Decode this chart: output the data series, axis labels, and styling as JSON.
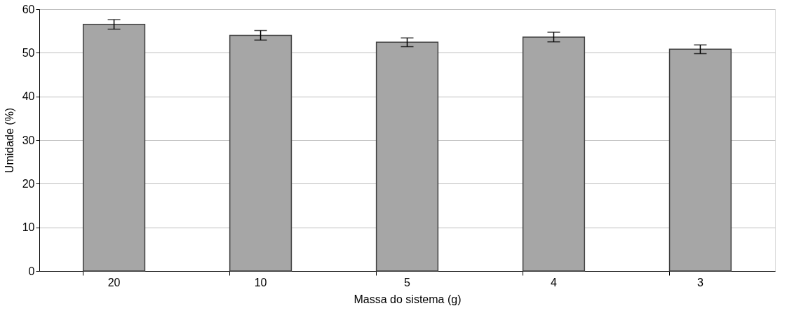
{
  "chart_data": {
    "type": "bar",
    "xlabel": "Massa do sistema (g)",
    "ylabel": "Umidade (%)",
    "categories": [
      "20",
      "10",
      "5",
      "4",
      "3"
    ],
    "values": [
      56.5,
      54,
      52.4,
      53.6,
      50.8
    ],
    "errors": [
      1.1,
      1.1,
      1.0,
      1.1,
      1.0
    ],
    "color": "#a6a6a6",
    "ylim": [
      0,
      60
    ],
    "yticks": [
      0,
      10,
      20,
      30,
      40,
      50,
      60
    ],
    "grid": "y"
  }
}
